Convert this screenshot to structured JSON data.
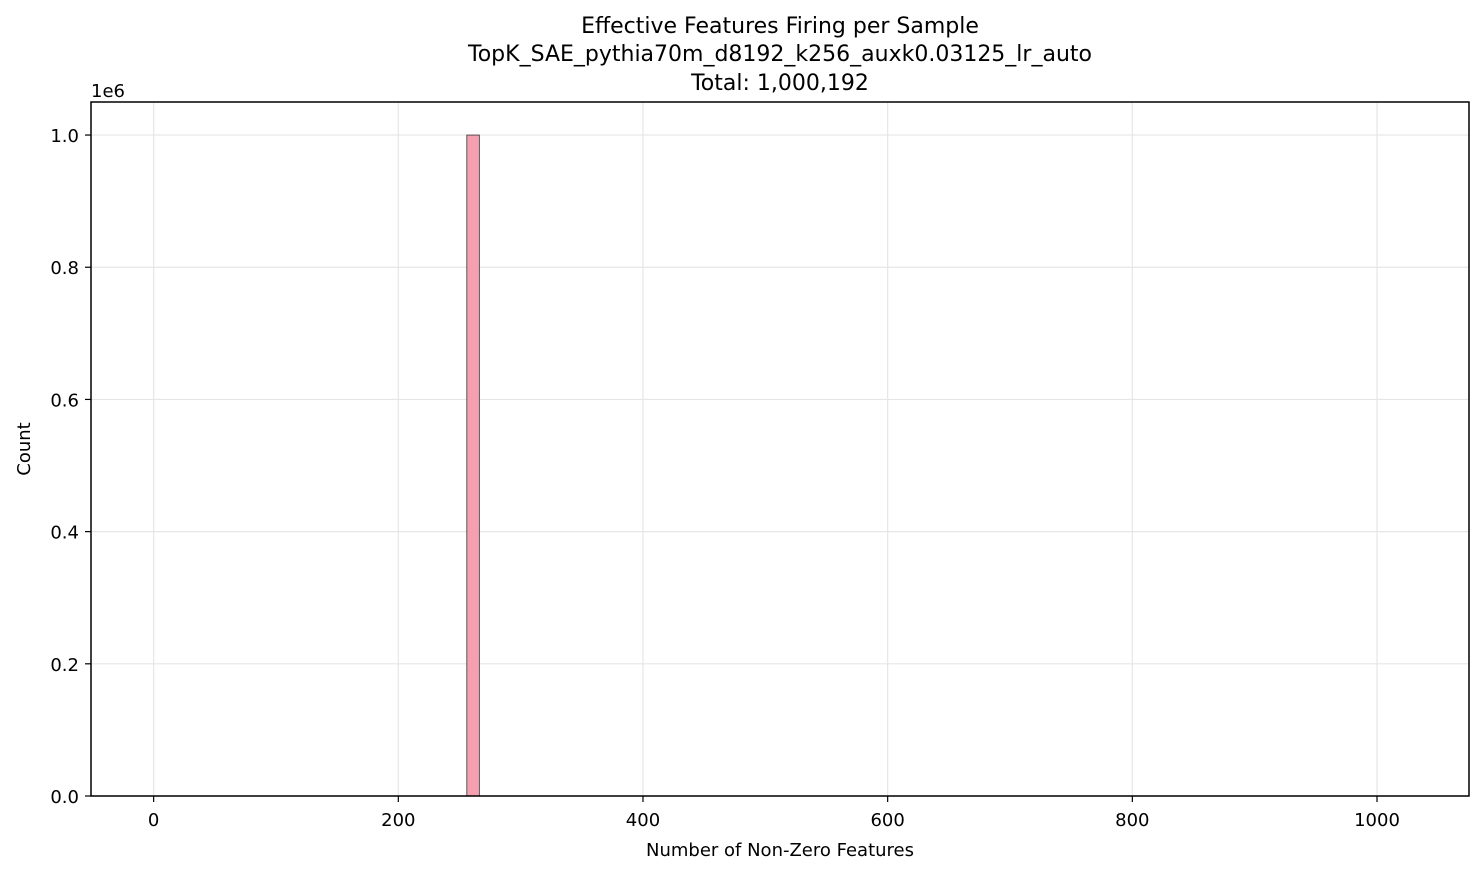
{
  "chart_data": {
    "type": "bar",
    "title_lines": [
      "Effective Features Firing per Sample",
      "TopK_SAE_pythia70m_d8192_k256_auxk0.03125_lr_auto",
      "Total: 1,000,192"
    ],
    "xlabel": "Number of Non-Zero Features",
    "ylabel": "Count",
    "y_offset_label": "1e6",
    "xlim": [
      -51.2,
      1075.2
    ],
    "ylim": [
      0,
      1.05
    ],
    "x_ticks": [
      0,
      200,
      400,
      600,
      800,
      1000
    ],
    "x_tick_labels": [
      "0",
      "200",
      "400",
      "600",
      "800",
      "1000"
    ],
    "y_ticks": [
      0.0,
      0.2,
      0.4,
      0.6,
      0.8,
      1.0
    ],
    "y_tick_labels": [
      "0.0",
      "0.2",
      "0.4",
      "0.6",
      "0.8",
      "1.0"
    ],
    "grid": true,
    "bar_color": "#f4a0b0",
    "bar_edge_color": "#333333",
    "bars": [
      {
        "x0": 256,
        "x1": 266.24,
        "value": 1.0
      }
    ]
  }
}
